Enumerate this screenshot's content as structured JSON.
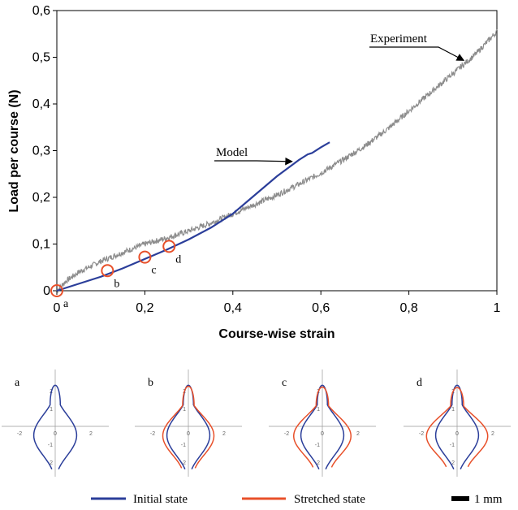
{
  "chart_data": [
    {
      "type": "line",
      "xlabel": "Course-wise strain",
      "ylabel": "Load per course (N)",
      "xlim": [
        0,
        1
      ],
      "ylim": [
        0,
        0.6
      ],
      "x_ticks": [
        "0",
        "0,2",
        "0,4",
        "0,6",
        "0,8",
        "1"
      ],
      "y_ticks": [
        "0",
        "0,1",
        "0,2",
        "0,3",
        "0,4",
        "0,5",
        "0,6"
      ],
      "series": [
        {
          "name": "Model",
          "color": "#2b3e9a",
          "x": [
            0,
            0.05,
            0.1,
            0.15,
            0.2,
            0.25,
            0.3,
            0.35,
            0.4,
            0.45,
            0.5,
            0.55,
            0.57,
            0.58,
            0.6,
            0.62
          ],
          "y": [
            0,
            0.015,
            0.03,
            0.048,
            0.068,
            0.088,
            0.11,
            0.135,
            0.165,
            0.205,
            0.245,
            0.28,
            0.292,
            0.295,
            0.307,
            0.318
          ]
        },
        {
          "name": "Experiment",
          "color": "#8c8c8c",
          "x": [
            0,
            0.02,
            0.05,
            0.1,
            0.15,
            0.2,
            0.25,
            0.3,
            0.35,
            0.4,
            0.45,
            0.5,
            0.55,
            0.6,
            0.65,
            0.7,
            0.75,
            0.8,
            0.85,
            0.9,
            0.95,
            1.0
          ],
          "y": [
            0.0,
            0.02,
            0.04,
            0.063,
            0.082,
            0.1,
            0.113,
            0.128,
            0.145,
            0.165,
            0.185,
            0.205,
            0.228,
            0.252,
            0.28,
            0.31,
            0.345,
            0.385,
            0.425,
            0.465,
            0.505,
            0.555
          ]
        }
      ],
      "markers": [
        {
          "label": "a",
          "x": 0.0,
          "y": 0.0
        },
        {
          "label": "b",
          "x": 0.115,
          "y": 0.043
        },
        {
          "label": "c",
          "x": 0.2,
          "y": 0.072
        },
        {
          "label": "d",
          "x": 0.255,
          "y": 0.095
        }
      ],
      "annotations": [
        {
          "text": "Model",
          "points_to": {
            "x": 0.54,
            "y": 0.282
          }
        },
        {
          "text": "Experiment",
          "points_to": {
            "x": 0.93,
            "y": 0.483
          }
        }
      ]
    },
    {
      "type": "line",
      "panels": [
        {
          "label": "a",
          "stretch": 0
        },
        {
          "label": "b",
          "stretch": 0.115
        },
        {
          "label": "c",
          "stretch": 0.2
        },
        {
          "label": "d",
          "stretch": 0.255
        }
      ],
      "panel_x_ticks": [
        "-2",
        "0",
        "2"
      ],
      "panel_y_ticks": [
        "2",
        "1",
        "0",
        "-1",
        "-2"
      ],
      "series": [
        {
          "name": "Initial state",
          "color": "#2b3e9a"
        },
        {
          "name": "Stretched state",
          "color": "#e8502a"
        }
      ],
      "scale_bar": "1 mm"
    }
  ]
}
